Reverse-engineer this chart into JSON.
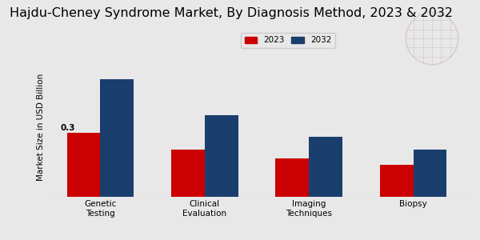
{
  "title": "Hajdu-Cheney Syndrome Market, By Diagnosis Method, 2023 & 2032",
  "ylabel": "Market Size in USD Billion",
  "categories": [
    "Genetic\nTesting",
    "Clinical\nEvaluation",
    "Imaging\nTechniques",
    "Biopsy"
  ],
  "values_2023": [
    0.3,
    0.22,
    0.18,
    0.15
  ],
  "values_2032": [
    0.55,
    0.38,
    0.28,
    0.22
  ],
  "color_2023": "#cc0000",
  "color_2032": "#1a3e6e",
  "bar_width": 0.32,
  "annotation_label": "0.3",
  "background_color": "#e8e8e8",
  "title_fontsize": 11.5,
  "axis_fontsize": 7.5,
  "legend_labels": [
    "2023",
    "2032"
  ],
  "ylim": [
    0,
    0.65
  ],
  "bottom_bar_color": "#cc0000",
  "bottom_bar_height": 0.028
}
